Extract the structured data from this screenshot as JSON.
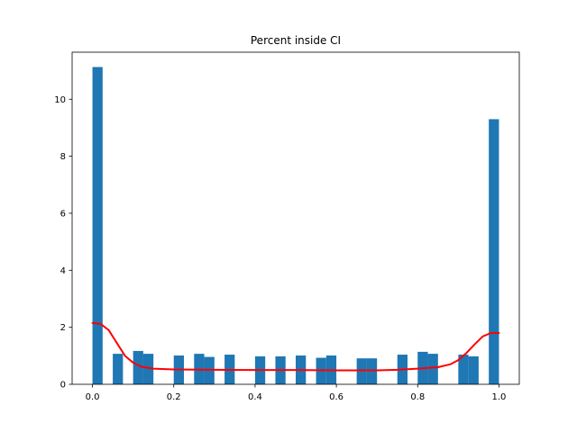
{
  "chart_data": {
    "type": "bar",
    "title": "Percent inside CI",
    "xlabel": "",
    "ylabel": "",
    "xlim": [
      -0.05,
      1.05
    ],
    "ylim": [
      0,
      11.65
    ],
    "x_ticks": [
      {
        "value": 0.0,
        "label": "0.0"
      },
      {
        "value": 0.2,
        "label": "0.2"
      },
      {
        "value": 0.4,
        "label": "0.4"
      },
      {
        "value": 0.6,
        "label": "0.6"
      },
      {
        "value": 0.8,
        "label": "0.8"
      },
      {
        "value": 1.0,
        "label": "1.0"
      }
    ],
    "y_ticks": [
      {
        "value": 0,
        "label": "0"
      },
      {
        "value": 2,
        "label": "2"
      },
      {
        "value": 4,
        "label": "4"
      },
      {
        "value": 6,
        "label": "6"
      },
      {
        "value": 8,
        "label": "8"
      },
      {
        "value": 10,
        "label": "10"
      }
    ],
    "grid": false,
    "bar_color": "#1f77b4",
    "line_color": "#ff0000",
    "bins": [
      {
        "x0": 0.0,
        "x1": 0.025,
        "value": 11.13
      },
      {
        "x0": 0.025,
        "x1": 0.05,
        "value": 0
      },
      {
        "x0": 0.05,
        "x1": 0.075,
        "value": 1.07
      },
      {
        "x0": 0.075,
        "x1": 0.1,
        "value": 0
      },
      {
        "x0": 0.1,
        "x1": 0.125,
        "value": 1.17
      },
      {
        "x0": 0.125,
        "x1": 0.15,
        "value": 1.07
      },
      {
        "x0": 0.15,
        "x1": 0.175,
        "value": 0
      },
      {
        "x0": 0.175,
        "x1": 0.2,
        "value": 0
      },
      {
        "x0": 0.2,
        "x1": 0.225,
        "value": 1.01
      },
      {
        "x0": 0.225,
        "x1": 0.25,
        "value": 0
      },
      {
        "x0": 0.25,
        "x1": 0.275,
        "value": 1.07
      },
      {
        "x0": 0.275,
        "x1": 0.3,
        "value": 0.96
      },
      {
        "x0": 0.3,
        "x1": 0.325,
        "value": 0
      },
      {
        "x0": 0.325,
        "x1": 0.35,
        "value": 1.04
      },
      {
        "x0": 0.35,
        "x1": 0.375,
        "value": 0
      },
      {
        "x0": 0.375,
        "x1": 0.4,
        "value": 0
      },
      {
        "x0": 0.4,
        "x1": 0.425,
        "value": 0.98
      },
      {
        "x0": 0.425,
        "x1": 0.45,
        "value": 0
      },
      {
        "x0": 0.45,
        "x1": 0.475,
        "value": 0.98
      },
      {
        "x0": 0.475,
        "x1": 0.5,
        "value": 0
      },
      {
        "x0": 0.5,
        "x1": 0.525,
        "value": 1.01
      },
      {
        "x0": 0.525,
        "x1": 0.55,
        "value": 0
      },
      {
        "x0": 0.55,
        "x1": 0.575,
        "value": 0.93
      },
      {
        "x0": 0.575,
        "x1": 0.6,
        "value": 1.01
      },
      {
        "x0": 0.6,
        "x1": 0.625,
        "value": 0
      },
      {
        "x0": 0.625,
        "x1": 0.65,
        "value": 0
      },
      {
        "x0": 0.65,
        "x1": 0.675,
        "value": 0.91
      },
      {
        "x0": 0.675,
        "x1": 0.7,
        "value": 0.91
      },
      {
        "x0": 0.7,
        "x1": 0.725,
        "value": 0
      },
      {
        "x0": 0.725,
        "x1": 0.75,
        "value": 0
      },
      {
        "x0": 0.75,
        "x1": 0.775,
        "value": 1.04
      },
      {
        "x0": 0.775,
        "x1": 0.8,
        "value": 0
      },
      {
        "x0": 0.8,
        "x1": 0.825,
        "value": 1.14
      },
      {
        "x0": 0.825,
        "x1": 0.85,
        "value": 1.07
      },
      {
        "x0": 0.85,
        "x1": 0.875,
        "value": 0
      },
      {
        "x0": 0.875,
        "x1": 0.9,
        "value": 0
      },
      {
        "x0": 0.9,
        "x1": 0.925,
        "value": 1.04
      },
      {
        "x0": 0.925,
        "x1": 0.95,
        "value": 0.98
      },
      {
        "x0": 0.95,
        "x1": 0.975,
        "value": 0
      },
      {
        "x0": 0.975,
        "x1": 1.0,
        "value": 9.3
      }
    ],
    "density_line": {
      "x": [
        0.0,
        0.02,
        0.04,
        0.06,
        0.08,
        0.1,
        0.12,
        0.15,
        0.2,
        0.3,
        0.4,
        0.5,
        0.6,
        0.65,
        0.7,
        0.75,
        0.8,
        0.85,
        0.88,
        0.9,
        0.92,
        0.94,
        0.96,
        0.98,
        1.0
      ],
      "y": [
        2.15,
        2.12,
        1.9,
        1.45,
        1.0,
        0.76,
        0.62,
        0.55,
        0.52,
        0.51,
        0.5,
        0.5,
        0.49,
        0.49,
        0.49,
        0.51,
        0.55,
        0.6,
        0.7,
        0.85,
        1.1,
        1.4,
        1.68,
        1.8,
        1.8
      ]
    }
  }
}
